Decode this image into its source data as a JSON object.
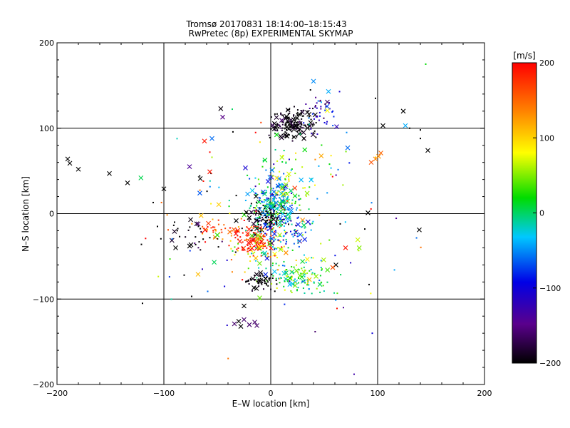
{
  "chart_data": {
    "type": "scatter",
    "title": "Tromsø 20170831 18:14:00–18:15:43",
    "subtitle": "RwPretec (8p) EXPERIMENTAL SKYMAP",
    "xlabel": "E–W location [km]",
    "ylabel": "N–S location [km]",
    "xlim": [
      -200,
      200
    ],
    "ylim": [
      -200,
      200
    ],
    "xticks": [
      "−200",
      "−100",
      "0",
      "100",
      "200"
    ],
    "yticks": [
      "−200",
      "−100",
      "0",
      "100",
      "200"
    ],
    "gridlines": [
      -100,
      0,
      100
    ],
    "colorbar": {
      "label": "[m/s]",
      "range": [
        -200,
        200
      ],
      "ticks": [
        "200",
        "100",
        "0",
        "−100",
        "−200"
      ]
    },
    "marker_types": [
      "x",
      "dot"
    ],
    "clusters": [
      {
        "x": 20,
        "y": 105,
        "sx": 10,
        "sy": 9,
        "v": -200,
        "sv": 15,
        "n": 170
      },
      {
        "x": 48,
        "y": 118,
        "sx": 9,
        "sy": 12,
        "v": -110,
        "sv": 30,
        "n": 45
      },
      {
        "x": 5,
        "y": 8,
        "sx": 12,
        "sy": 16,
        "v": -30,
        "sv": 45,
        "n": 260
      },
      {
        "x": -15,
        "y": -35,
        "sx": 9,
        "sy": 8,
        "v": 190,
        "sv": 15,
        "n": 90
      },
      {
        "x": -20,
        "y": -20,
        "sx": 22,
        "sy": 8,
        "v": 170,
        "sv": 30,
        "n": 45
      },
      {
        "x": -5,
        "y": -5,
        "sx": 9,
        "sy": 9,
        "v": -195,
        "sv": 10,
        "n": 90
      },
      {
        "x": 25,
        "y": -75,
        "sx": 16,
        "sy": 10,
        "v": 20,
        "sv": 40,
        "n": 120
      },
      {
        "x": -10,
        "y": -80,
        "sx": 7,
        "sy": 6,
        "v": -200,
        "sv": 10,
        "n": 60
      },
      {
        "x": 25,
        "y": 40,
        "sx": 22,
        "sy": 20,
        "v": 20,
        "sv": 60,
        "n": 70
      },
      {
        "x": -5,
        "y": -40,
        "sx": 15,
        "sy": 15,
        "v": 80,
        "sv": 30,
        "n": 50
      },
      {
        "x": 10,
        "y": -25,
        "sx": 15,
        "sy": 10,
        "v": -50,
        "sv": 50,
        "n": 60
      },
      {
        "x": -70,
        "y": -25,
        "sx": 14,
        "sy": 10,
        "v": -200,
        "sv": 40,
        "n": 30
      },
      {
        "x": -55,
        "y": -20,
        "sx": 8,
        "sy": 8,
        "v": 160,
        "sv": 30,
        "n": 20
      },
      {
        "x": 0,
        "y": 0,
        "sx": 60,
        "sy": 60,
        "v": 0,
        "sv": 120,
        "n": 120
      }
    ],
    "points": [
      {
        "x": -190,
        "y": 64,
        "v": -200,
        "m": "x"
      },
      {
        "x": -188,
        "y": 59,
        "v": -200,
        "m": "x"
      },
      {
        "x": -180,
        "y": 52,
        "v": -200,
        "m": "x"
      },
      {
        "x": -151,
        "y": 47,
        "v": -200,
        "m": "x"
      },
      {
        "x": -134,
        "y": 36,
        "v": -200,
        "m": "x"
      },
      {
        "x": -100,
        "y": 29,
        "v": -200,
        "m": "x"
      },
      {
        "x": -110,
        "y": 13,
        "v": -200,
        "m": "dot"
      },
      {
        "x": -106,
        "y": -15,
        "v": -200,
        "m": "dot"
      },
      {
        "x": -89,
        "y": -40,
        "v": -200,
        "m": "x"
      },
      {
        "x": -120,
        "y": -105,
        "v": -200,
        "m": "dot"
      },
      {
        "x": -121,
        "y": -36,
        "v": -200,
        "m": "dot"
      },
      {
        "x": -96,
        "y": -19,
        "v": 160,
        "m": "dot"
      },
      {
        "x": -90,
        "y": -10,
        "v": -200,
        "m": "dot"
      },
      {
        "x": -62,
        "y": 85,
        "v": 190,
        "m": "x"
      },
      {
        "x": -55,
        "y": 88,
        "v": -60,
        "m": "x"
      },
      {
        "x": -57,
        "y": 72,
        "v": 195,
        "m": "dot"
      },
      {
        "x": -55,
        "y": 66,
        "v": 60,
        "m": "dot"
      },
      {
        "x": -45,
        "y": 113,
        "v": -150,
        "m": "x"
      },
      {
        "x": -76,
        "y": 55,
        "v": -140,
        "m": "x"
      },
      {
        "x": -57,
        "y": 49,
        "v": 190,
        "m": "x"
      },
      {
        "x": -66,
        "y": 41,
        "v": -200,
        "m": "x"
      },
      {
        "x": -63,
        "y": 38,
        "v": 190,
        "m": "dot"
      },
      {
        "x": -81,
        "y": -72,
        "v": -200,
        "m": "dot"
      },
      {
        "x": -68,
        "y": -71,
        "v": 110,
        "m": "x"
      },
      {
        "x": -64,
        "y": -65,
        "v": -120,
        "m": "dot"
      },
      {
        "x": -59,
        "y": -91,
        "v": -60,
        "m": "dot"
      },
      {
        "x": -50,
        "y": -25,
        "v": 30,
        "m": "x"
      },
      {
        "x": -30,
        "y": -126,
        "v": -200,
        "m": "x"
      },
      {
        "x": -28,
        "y": -132,
        "v": -200,
        "m": "x"
      },
      {
        "x": -25,
        "y": -124,
        "v": -160,
        "m": "x"
      },
      {
        "x": -20,
        "y": -130,
        "v": -160,
        "m": "x"
      },
      {
        "x": -15,
        "y": -127,
        "v": -160,
        "m": "x"
      },
      {
        "x": -13,
        "y": -131,
        "v": -160,
        "m": "x"
      },
      {
        "x": -34,
        "y": -129,
        "v": -160,
        "m": "x"
      },
      {
        "x": -25,
        "y": -108,
        "v": -200,
        "m": "x"
      },
      {
        "x": 54,
        "y": 143,
        "v": -40,
        "m": "x"
      },
      {
        "x": 40,
        "y": 155,
        "v": -50,
        "m": "x"
      },
      {
        "x": 145,
        "y": 175,
        "v": 20,
        "m": "dot"
      },
      {
        "x": 124,
        "y": 120,
        "v": -200,
        "m": "x"
      },
      {
        "x": 98,
        "y": 135,
        "v": -200,
        "m": "dot"
      },
      {
        "x": 105,
        "y": 103,
        "v": -200,
        "m": "x"
      },
      {
        "x": 126,
        "y": 103,
        "v": -40,
        "m": "x"
      },
      {
        "x": 130,
        "y": 100,
        "v": -200,
        "m": "dot"
      },
      {
        "x": 140,
        "y": 98,
        "v": -200,
        "m": "dot"
      },
      {
        "x": 147,
        "y": 74,
        "v": -200,
        "m": "x"
      },
      {
        "x": 140,
        "y": 88,
        "v": -200,
        "m": "dot"
      },
      {
        "x": 94,
        "y": 60,
        "v": 160,
        "m": "x"
      },
      {
        "x": 98,
        "y": 64,
        "v": 140,
        "m": "x"
      },
      {
        "x": 101,
        "y": 67,
        "v": 130,
        "m": "x"
      },
      {
        "x": 103,
        "y": 71,
        "v": 150,
        "m": "x"
      },
      {
        "x": 98,
        "y": 66,
        "v": 100,
        "m": "dot"
      },
      {
        "x": 71,
        "y": 95,
        "v": -50,
        "m": "dot"
      },
      {
        "x": 72,
        "y": 77,
        "v": -60,
        "m": "x"
      },
      {
        "x": 91,
        "y": 1,
        "v": -200,
        "m": "x"
      },
      {
        "x": 88,
        "y": -18,
        "v": -200,
        "m": "dot"
      },
      {
        "x": 139,
        "y": -19,
        "v": -200,
        "m": "x"
      },
      {
        "x": 92,
        "y": -83,
        "v": -200,
        "m": "dot"
      },
      {
        "x": 70,
        "y": -40,
        "v": 190,
        "m": "x"
      },
      {
        "x": 61,
        "y": -60,
        "v": -200,
        "m": "x"
      },
      {
        "x": 58,
        "y": -63,
        "v": 160,
        "m": "x"
      },
      {
        "x": 65,
        "y": -12,
        "v": -200,
        "m": "dot"
      },
      {
        "x": 95,
        "y": -140,
        "v": -100,
        "m": "dot"
      },
      {
        "x": 78,
        "y": -188,
        "v": -130,
        "m": "dot"
      },
      {
        "x": 68,
        "y": -110,
        "v": -140,
        "m": "dot"
      },
      {
        "x": 62,
        "y": -111,
        "v": 190,
        "m": "dot"
      }
    ]
  }
}
